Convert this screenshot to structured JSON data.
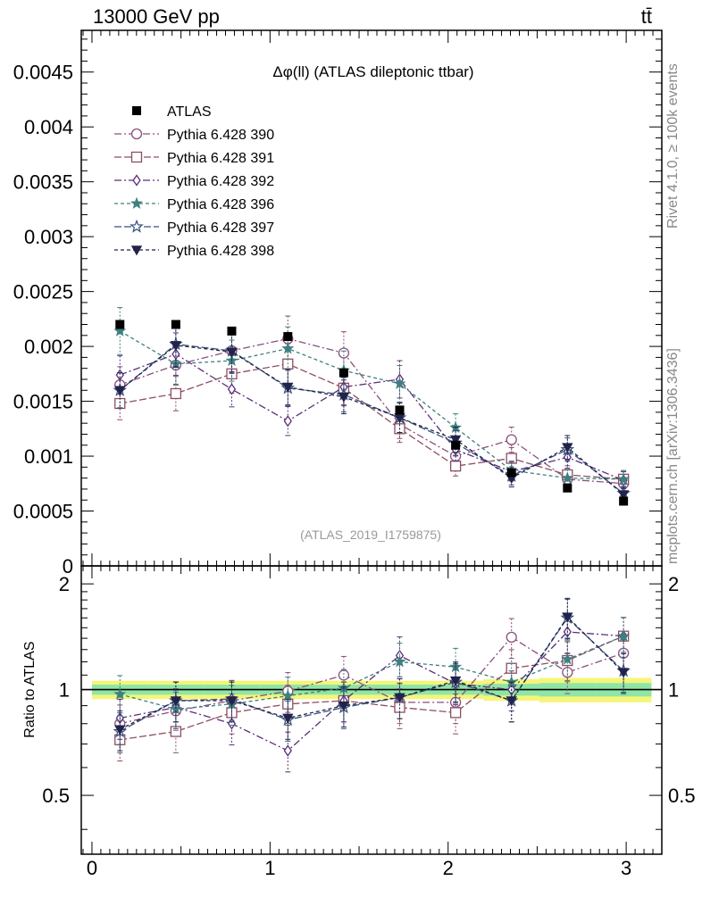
{
  "header": {
    "left": "13000 GeV pp",
    "right": "tt̄"
  },
  "side_labels": {
    "top": "Rivet 4.1.0, ≥ 100k events",
    "middle": "mcplots.cern.ch [arXiv:1306.3436]"
  },
  "chart_data": {
    "type": "scatter",
    "title": "Δφ(ll) (ATLAS dileptonic ttbar)",
    "watermark": "(ATLAS_2019_I1759875)",
    "xlabel": "",
    "ylabel": "",
    "ratio_ylabel": "Ratio to ATLAS",
    "xlim": [
      -0.06,
      3.2
    ],
    "ylim": [
      0,
      0.00488
    ],
    "ratio_ylim": [
      0.34,
      2.25
    ],
    "x_ticks": [
      0,
      1,
      2,
      3
    ],
    "x_tick_labels": [
      "0",
      "1",
      "2",
      "3"
    ],
    "y_ticks": [
      0,
      0.0005,
      0.001,
      0.0015,
      0.002,
      0.0025,
      0.003,
      0.0035,
      0.004,
      0.0045
    ],
    "y_tick_labels": [
      "0",
      "0.0005",
      "0.001",
      "0.0015",
      "0.002",
      "0.0025",
      "0.003",
      "0.0035",
      "0.004",
      "0.0045"
    ],
    "ratio_ticks": [
      0.5,
      1,
      2
    ],
    "ratio_tick_labels": [
      "0.5",
      "1",
      "2"
    ],
    "x": [
      0.157,
      0.471,
      0.785,
      1.1,
      1.414,
      1.728,
      2.042,
      2.356,
      2.67,
      2.985
    ],
    "data": {
      "name": "ATLAS",
      "values": [
        0.0022,
        0.0022,
        0.00214,
        0.00209,
        0.00176,
        0.00142,
        0.0011,
        0.00085,
        0.00071,
        0.00059
      ],
      "ratio_band": [
        0.06,
        0.06,
        0.06,
        0.06,
        0.06,
        0.06,
        0.06,
        0.07,
        0.08,
        0.08
      ]
    },
    "series": [
      {
        "name": "Pythia 6.428 390",
        "marker": "circle-open",
        "color": "#8a4f7d",
        "dash": "8,3,2,3",
        "values": [
          0.00165,
          0.00183,
          0.00196,
          0.00207,
          0.00194,
          0.00129,
          0.001,
          0.00115,
          0.00079,
          0.00075
        ],
        "ratios": [
          0.8,
          0.87,
          0.93,
          0.99,
          1.1,
          0.92,
          0.92,
          1.41,
          1.12,
          1.27
        ]
      },
      {
        "name": "Pythia 6.428 391",
        "marker": "square-open",
        "color": "#8b4f61",
        "dash": "8,3",
        "values": [
          0.00148,
          0.00157,
          0.00175,
          0.00184,
          0.00162,
          0.00125,
          0.00091,
          0.00098,
          0.00083,
          0.00079
        ],
        "ratios": [
          0.72,
          0.76,
          0.86,
          0.91,
          0.93,
          0.89,
          0.86,
          1.15,
          1.21,
          1.42
        ]
      },
      {
        "name": "Pythia 6.428 392",
        "marker": "diamond-open",
        "color": "#5a2e7a",
        "dash": "8,3,2,3",
        "values": [
          0.00174,
          0.00193,
          0.00161,
          0.00132,
          0.00163,
          0.0017,
          0.00106,
          0.00086,
          0.00099,
          0.00078
        ],
        "ratios": [
          0.83,
          0.89,
          0.8,
          0.67,
          0.93,
          1.25,
          1.04,
          1.0,
          1.46,
          1.42
        ]
      },
      {
        "name": "Pythia 6.428 396",
        "marker": "star",
        "color": "#3f7f7f",
        "dash": "4,3",
        "values": [
          0.00214,
          0.00184,
          0.00187,
          0.00198,
          0.00178,
          0.00166,
          0.00126,
          0.00087,
          0.0008,
          0.00079
        ],
        "ratios": [
          0.97,
          0.88,
          0.91,
          0.96,
          1.01,
          1.2,
          1.16,
          1.05,
          1.22,
          1.42
        ]
      },
      {
        "name": "Pythia 6.428 397",
        "marker": "star-open",
        "color": "#36507a",
        "dash": "8,3",
        "values": [
          0.0016,
          0.00202,
          0.00196,
          0.00162,
          0.00156,
          0.00135,
          0.00112,
          0.00082,
          0.00106,
          0.00066
        ],
        "ratios": [
          0.76,
          0.93,
          0.94,
          0.82,
          0.89,
          0.95,
          1.05,
          0.93,
          1.6,
          1.13
        ]
      },
      {
        "name": "Pythia 6.428 398",
        "marker": "triangle-down",
        "color": "#22224a",
        "dash": "4,3",
        "values": [
          0.0016,
          0.00201,
          0.00195,
          0.00163,
          0.00154,
          0.00135,
          0.00115,
          0.0008,
          0.00108,
          0.00065
        ],
        "ratios": [
          0.77,
          0.93,
          0.93,
          0.83,
          0.9,
          0.95,
          1.06,
          0.93,
          1.61,
          1.12
        ]
      }
    ]
  }
}
